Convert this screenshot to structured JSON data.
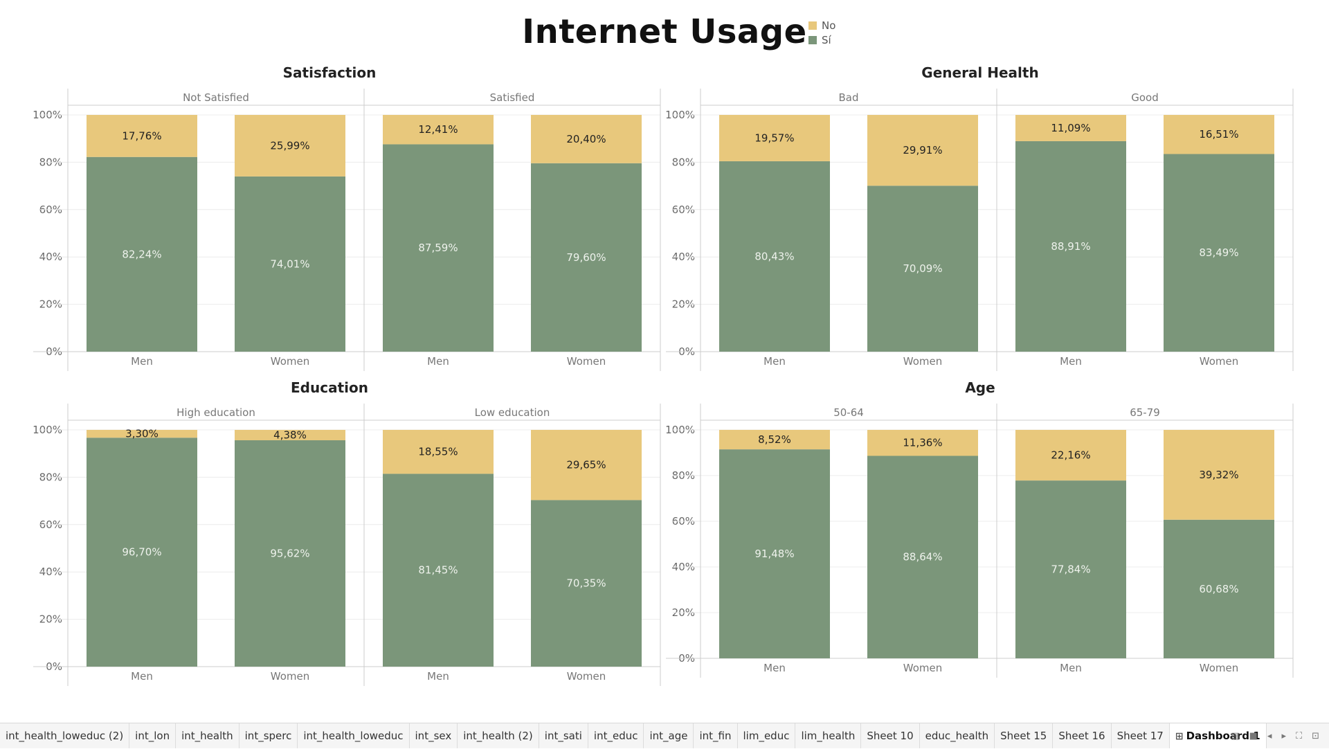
{
  "dashboard": {
    "title": "Internet Usage",
    "legend": [
      {
        "name": "No",
        "color": "#e8c87c"
      },
      {
        "name": "Sí",
        "color": "#7b967a"
      }
    ]
  },
  "colors": {
    "no": "#e8c87c",
    "si": "#7b967a",
    "grid": "#ececec",
    "axis": "#cccccc"
  },
  "chart_data": [
    {
      "type": "bar",
      "stacked": true,
      "title": "Satisfaction",
      "ylim": [
        0,
        100
      ],
      "yticks": [
        "0%",
        "20%",
        "40%",
        "60%",
        "80%",
        "100%"
      ],
      "panels": [
        {
          "label": "Not Satisfied",
          "categories": [
            "Men",
            "Women"
          ],
          "series": [
            {
              "name": "Sí",
              "values": [
                82.24,
                74.01
              ],
              "labels": [
                "82,24%",
                "74,01%"
              ]
            },
            {
              "name": "No",
              "values": [
                17.76,
                25.99
              ],
              "labels": [
                "17,76%",
                "25,99%"
              ]
            }
          ]
        },
        {
          "label": "Satisfied",
          "categories": [
            "Men",
            "Women"
          ],
          "series": [
            {
              "name": "Sí",
              "values": [
                87.59,
                79.6
              ],
              "labels": [
                "87,59%",
                "79,60%"
              ]
            },
            {
              "name": "No",
              "values": [
                12.41,
                20.4
              ],
              "labels": [
                "12,41%",
                "20,40%"
              ]
            }
          ]
        }
      ]
    },
    {
      "type": "bar",
      "stacked": true,
      "title": "General Health",
      "ylim": [
        0,
        100
      ],
      "yticks": [
        "0%",
        "20%",
        "40%",
        "60%",
        "80%",
        "100%"
      ],
      "panels": [
        {
          "label": "Bad",
          "categories": [
            "Men",
            "Women"
          ],
          "series": [
            {
              "name": "Sí",
              "values": [
                80.43,
                70.09
              ],
              "labels": [
                "80,43%",
                "70,09%"
              ]
            },
            {
              "name": "No",
              "values": [
                19.57,
                29.91
              ],
              "labels": [
                "19,57%",
                "29,91%"
              ]
            }
          ]
        },
        {
          "label": "Good",
          "categories": [
            "Men",
            "Women"
          ],
          "series": [
            {
              "name": "Sí",
              "values": [
                88.91,
                83.49
              ],
              "labels": [
                "88,91%",
                "83,49%"
              ]
            },
            {
              "name": "No",
              "values": [
                11.09,
                16.51
              ],
              "labels": [
                "11,09%",
                "16,51%"
              ]
            }
          ]
        }
      ]
    },
    {
      "type": "bar",
      "stacked": true,
      "title": "Education",
      "ylim": [
        0,
        100
      ],
      "yticks": [
        "0%",
        "20%",
        "40%",
        "60%",
        "80%",
        "100%"
      ],
      "panels": [
        {
          "label": "High education",
          "categories": [
            "Men",
            "Women"
          ],
          "series": [
            {
              "name": "Sí",
              "values": [
                96.7,
                95.62
              ],
              "labels": [
                "96,70%",
                "95,62%"
              ]
            },
            {
              "name": "No",
              "values": [
                3.3,
                4.38
              ],
              "labels": [
                "3,30%",
                "4,38%"
              ]
            }
          ]
        },
        {
          "label": "Low education",
          "categories": [
            "Men",
            "Women"
          ],
          "series": [
            {
              "name": "Sí",
              "values": [
                81.45,
                70.35
              ],
              "labels": [
                "81,45%",
                "70,35%"
              ]
            },
            {
              "name": "No",
              "values": [
                18.55,
                29.65
              ],
              "labels": [
                "18,55%",
                "29,65%"
              ]
            }
          ]
        }
      ]
    },
    {
      "type": "bar",
      "stacked": true,
      "title": "Age",
      "ylim": [
        0,
        100
      ],
      "yticks": [
        "0%",
        "20%",
        "40%",
        "60%",
        "80%",
        "100%"
      ],
      "panels": [
        {
          "label": "50-64",
          "categories": [
            "Men",
            "Women"
          ],
          "series": [
            {
              "name": "Sí",
              "values": [
                91.48,
                88.64
              ],
              "labels": [
                "91,48%",
                "88,64%"
              ]
            },
            {
              "name": "No",
              "values": [
                8.52,
                11.36
              ],
              "labels": [
                "8,52%",
                "11,36%"
              ]
            }
          ]
        },
        {
          "label": "65-79",
          "categories": [
            "Men",
            "Women"
          ],
          "series": [
            {
              "name": "Sí",
              "values": [
                77.84,
                60.68
              ],
              "labels": [
                "77,84%",
                "60,68%"
              ]
            },
            {
              "name": "No",
              "values": [
                22.16,
                39.32
              ],
              "labels": [
                "22,16%",
                "39,32%"
              ]
            }
          ]
        }
      ]
    }
  ],
  "tabs": [
    "int_health_loweduc (2)",
    "int_lon",
    "int_health",
    "int_sperc",
    "int_health_loweduc",
    "int_sex",
    "int_health (2)",
    "int_sati",
    "int_educ",
    "int_age",
    "int_fin",
    "lim_educ",
    "lim_health",
    "Sheet 10",
    "educ_health",
    "Sheet 15",
    "Sheet 16",
    "Sheet 17",
    "Dashboard 1"
  ],
  "active_tab": "Dashboard 1",
  "tab_icons": {
    "dashboard": "dashboard-grid-icon"
  }
}
